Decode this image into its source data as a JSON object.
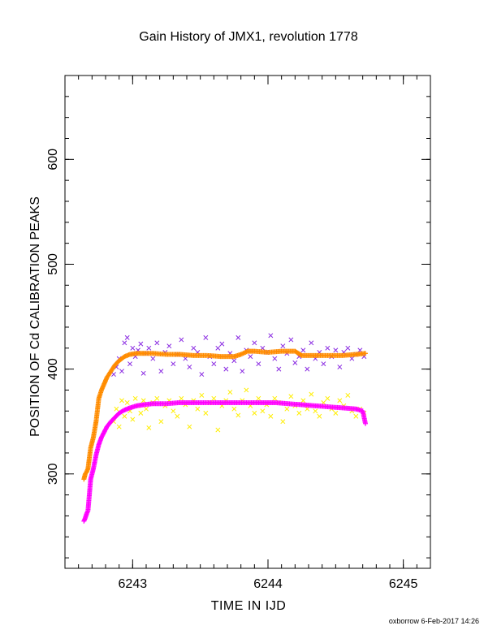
{
  "chart_data": {
    "type": "scatter",
    "title": "Gain History of JMX1, revolution 1778",
    "xlabel": "TIME IN IJD",
    "ylabel": "POSITION OF Cd CALIBRATION PEAKS",
    "xlim": [
      6242.5,
      6245.2
    ],
    "ylim": [
      210,
      680
    ],
    "xticks": [
      6243,
      6244,
      6245
    ],
    "yticks": [
      300,
      400,
      500,
      600
    ],
    "grid": false,
    "series": [
      {
        "color": "#8a2be2",
        "marker": "x",
        "x": [
          6242.86,
          6242.88,
          6242.9,
          6242.92,
          6242.94,
          6242.96,
          6242.98,
          6243.0,
          6243.02,
          6243.04,
          6243.06,
          6243.08,
          6243.1,
          6243.12,
          6243.15,
          6243.18,
          6243.21,
          6243.24,
          6243.27,
          6243.3,
          6243.33,
          6243.36,
          6243.39,
          6243.42,
          6243.45,
          6243.48,
          6243.51,
          6243.54,
          6243.57,
          6243.6,
          6243.63,
          6243.66,
          6243.69,
          6243.72,
          6243.75,
          6243.78,
          6243.81,
          6243.84,
          6243.87,
          6243.9,
          6243.93,
          6243.96,
          6243.99,
          6244.02,
          6244.05,
          6244.08,
          6244.11,
          6244.14,
          6244.17,
          6244.2,
          6244.23,
          6244.26,
          6244.29,
          6244.32,
          6244.35,
          6244.38,
          6244.41,
          6244.44,
          6244.47,
          6244.5,
          6244.53,
          6244.56,
          6244.59,
          6244.62,
          6244.65,
          6244.68,
          6244.71
        ],
        "y": [
          395,
          402,
          410,
          398,
          425,
          430,
          405,
          420,
          412,
          418,
          424,
          396,
          415,
          420,
          410,
          425,
          398,
          416,
          422,
          405,
          414,
          428,
          410,
          402,
          420,
          416,
          395,
          430,
          412,
          405,
          420,
          424,
          400,
          415,
          408,
          430,
          398,
          418,
          412,
          425,
          405,
          420,
          416,
          432,
          410,
          400,
          422,
          415,
          428,
          406,
          412,
          418,
          400,
          425,
          410,
          416,
          405,
          420,
          412,
          418,
          402,
          416,
          420,
          410,
          414,
          418,
          412
        ]
      },
      {
        "color": "#ffee00",
        "marker": "x",
        "x": [
          6242.86,
          6242.88,
          6242.9,
          6242.92,
          6242.94,
          6242.96,
          6242.98,
          6243.0,
          6243.02,
          6243.04,
          6243.06,
          6243.08,
          6243.1,
          6243.12,
          6243.15,
          6243.18,
          6243.21,
          6243.24,
          6243.27,
          6243.3,
          6243.33,
          6243.36,
          6243.39,
          6243.42,
          6243.45,
          6243.48,
          6243.51,
          6243.54,
          6243.57,
          6243.6,
          6243.63,
          6243.66,
          6243.69,
          6243.72,
          6243.75,
          6243.78,
          6243.81,
          6243.84,
          6243.87,
          6243.9,
          6243.93,
          6243.96,
          6243.99,
          6244.02,
          6244.05,
          6244.08,
          6244.11,
          6244.14,
          6244.17,
          6244.2,
          6244.23,
          6244.26,
          6244.29,
          6244.32,
          6244.35,
          6244.38,
          6244.41,
          6244.44,
          6244.47,
          6244.5,
          6244.53,
          6244.56,
          6244.59,
          6244.62,
          6244.65,
          6244.68,
          6244.71
        ],
        "y": [
          350,
          362,
          345,
          370,
          355,
          368,
          360,
          352,
          372,
          365,
          358,
          370,
          362,
          344,
          368,
          372,
          350,
          365,
          370,
          360,
          355,
          372,
          366,
          345,
          370,
          362,
          375,
          358,
          368,
          372,
          342,
          365,
          370,
          378,
          362,
          356,
          370,
          380,
          365,
          358,
          372,
          360,
          366,
          355,
          372,
          368,
          350,
          362,
          374,
          365,
          358,
          370,
          362,
          376,
          360,
          355,
          368,
          372,
          362,
          358,
          370,
          365,
          375,
          360,
          355,
          362,
          358
        ]
      }
    ],
    "curves": [
      {
        "color": "#ff8c00",
        "marker": "+",
        "x": [
          6242.64,
          6242.65,
          6242.66,
          6242.67,
          6242.69,
          6242.71,
          6242.73,
          6242.75,
          6242.77,
          6242.79,
          6242.81,
          6242.84,
          6242.87,
          6242.9,
          6242.94,
          6242.98,
          6243.03,
          6243.08,
          6243.15,
          6243.25,
          6243.35,
          6243.45,
          6243.55,
          6243.65,
          6243.75,
          6243.8,
          6243.85,
          6243.9,
          6244.0,
          6244.1,
          6244.2,
          6244.25,
          6244.35,
          6244.45,
          6244.55,
          6244.65,
          6244.72
        ],
        "y": [
          295,
          300,
          302,
          305,
          325,
          335,
          350,
          372,
          380,
          386,
          392,
          398,
          404,
          408,
          412,
          414,
          415,
          415,
          415,
          414,
          414,
          413,
          413,
          412,
          412,
          414,
          417,
          417,
          416,
          417,
          417,
          413,
          413,
          413,
          413,
          414,
          415
        ]
      },
      {
        "color": "#ff00ff",
        "marker": "+",
        "x": [
          6242.64,
          6242.65,
          6242.66,
          6242.67,
          6242.69,
          6242.71,
          6242.73,
          6242.75,
          6242.77,
          6242.79,
          6242.81,
          6242.84,
          6242.87,
          6242.9,
          6242.94,
          6242.98,
          6243.03,
          6243.08,
          6243.15,
          6243.25,
          6243.35,
          6243.45,
          6243.55,
          6243.65,
          6243.75,
          6243.85,
          6243.95,
          6244.05,
          6244.15,
          6244.25,
          6244.35,
          6244.45,
          6244.55,
          6244.65,
          6244.7,
          6244.72
        ],
        "y": [
          255,
          258,
          262,
          265,
          295,
          305,
          318,
          328,
          335,
          340,
          345,
          350,
          354,
          358,
          361,
          363,
          365,
          366,
          367,
          367,
          368,
          368,
          368,
          368,
          368,
          368,
          368,
          368,
          367,
          366,
          365,
          364,
          363,
          362,
          360,
          348
        ]
      }
    ]
  },
  "footer": "oxborrow  6-Feb-2017 14:26"
}
